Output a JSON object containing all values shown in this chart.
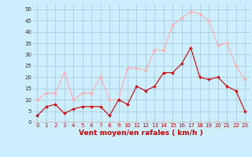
{
  "x": [
    0,
    1,
    2,
    3,
    4,
    5,
    6,
    7,
    8,
    9,
    10,
    11,
    12,
    13,
    14,
    15,
    16,
    17,
    18,
    19,
    20,
    21,
    22,
    23
  ],
  "wind_avg": [
    3,
    7,
    8,
    4,
    6,
    7,
    7,
    7,
    3,
    10,
    8,
    16,
    14,
    16,
    22,
    22,
    26,
    33,
    20,
    19,
    20,
    16,
    14,
    5
  ],
  "wind_gust": [
    10,
    13,
    13,
    22,
    10,
    13,
    13,
    20,
    10,
    10,
    24,
    24,
    23,
    32,
    32,
    43,
    46,
    49,
    48,
    45,
    34,
    35,
    25,
    19
  ],
  "avg_color": "#cc0000",
  "gust_color": "#ffaaaa",
  "bg_color": "#cceeff",
  "grid_color": "#99bbcc",
  "xlabel": "Vent moyen/en rafales ( km/h )",
  "xlabel_color": "#cc0000",
  "ylabel_ticks": [
    0,
    5,
    10,
    15,
    20,
    25,
    30,
    35,
    40,
    45,
    50
  ],
  "ylim": [
    0,
    52
  ],
  "xlim": [
    -0.5,
    23.5
  ],
  "marker": "+",
  "markersize": 3,
  "linewidth": 0.8,
  "tick_fontsize": 5,
  "xlabel_fontsize": 6.5
}
